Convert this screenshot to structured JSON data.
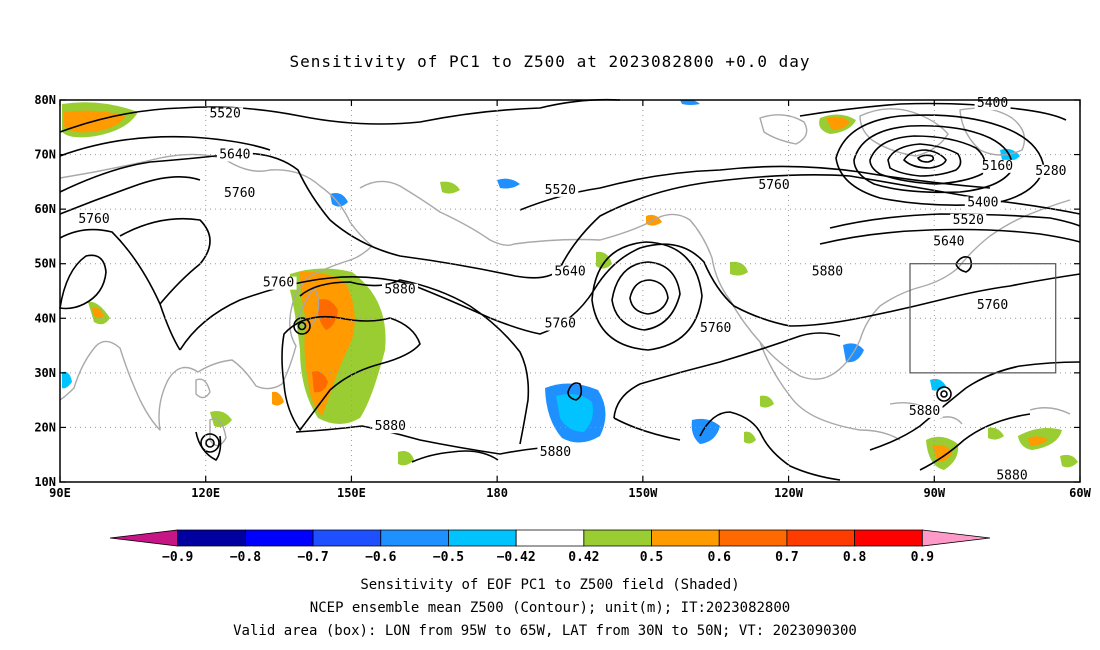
{
  "title": "Sensitivity of PC1 to Z500 at 2023082800 +0.0 day",
  "map": {
    "lon_range": [
      90,
      300
    ],
    "lat_range": [
      10,
      80
    ],
    "lon_ticks": [
      {
        "lon": 90,
        "label": "90E"
      },
      {
        "lon": 120,
        "label": "120E"
      },
      {
        "lon": 150,
        "label": "150E"
      },
      {
        "lon": 180,
        "label": "180"
      },
      {
        "lon": 210,
        "label": "150W"
      },
      {
        "lon": 240,
        "label": "120W"
      },
      {
        "lon": 270,
        "label": "90W"
      },
      {
        "lon": 300,
        "label": "60W"
      }
    ],
    "lat_ticks": [
      {
        "lat": 10,
        "label": "10N"
      },
      {
        "lat": 20,
        "label": "20N"
      },
      {
        "lat": 30,
        "label": "30N"
      },
      {
        "lat": 40,
        "label": "40N"
      },
      {
        "lat": 50,
        "label": "50N"
      },
      {
        "lat": 60,
        "label": "60N"
      },
      {
        "lat": 70,
        "label": "70N"
      },
      {
        "lat": 80,
        "label": "80N"
      }
    ],
    "grid": true,
    "valid_box": {
      "lon_min": 265,
      "lon_max": 295,
      "lat_min": 30,
      "lat_max": 50
    },
    "contour_labels": [
      {
        "text": "5520",
        "lon": 124,
        "lat": 76.8
      },
      {
        "text": "5640",
        "lon": 126,
        "lat": 69.3
      },
      {
        "text": "5760",
        "lon": 127,
        "lat": 62.2
      },
      {
        "text": "5760",
        "lon": 97,
        "lat": 57.5
      },
      {
        "text": "5760",
        "lon": 135,
        "lat": 45.8
      },
      {
        "text": "5880",
        "lon": 160,
        "lat": 44.5
      },
      {
        "text": "5880",
        "lon": 158,
        "lat": 19.5
      },
      {
        "text": "5880",
        "lon": 192,
        "lat": 14.8
      },
      {
        "text": "5520",
        "lon": 193,
        "lat": 62.8
      },
      {
        "text": "5640",
        "lon": 195,
        "lat": 47.8
      },
      {
        "text": "5760",
        "lon": 193,
        "lat": 38.3
      },
      {
        "text": "5760",
        "lon": 225,
        "lat": 37.5
      },
      {
        "text": "5760",
        "lon": 237,
        "lat": 63.7
      },
      {
        "text": "5880",
        "lon": 248,
        "lat": 47.8
      },
      {
        "text": "5880",
        "lon": 268,
        "lat": 22.3
      },
      {
        "text": "5400",
        "lon": 282,
        "lat": 78.7
      },
      {
        "text": "5160",
        "lon": 283,
        "lat": 67.2
      },
      {
        "text": "5280",
        "lon": 294,
        "lat": 66.3
      },
      {
        "text": "5400",
        "lon": 280,
        "lat": 60.5
      },
      {
        "text": "5520",
        "lon": 277,
        "lat": 57.3
      },
      {
        "text": "5640",
        "lon": 273,
        "lat": 53.3
      },
      {
        "text": "5760",
        "lon": 282,
        "lat": 41.7
      },
      {
        "text": "5880",
        "lon": 286,
        "lat": 10.5
      }
    ]
  },
  "colorbar": {
    "levels": [
      "-0.9",
      "-0.8",
      "-0.7",
      "-0.6",
      "-0.5",
      "-0.42",
      "0.42",
      "0.5",
      "0.6",
      "0.7",
      "0.8",
      "0.9"
    ],
    "colors": [
      "#c71585",
      "#0000a0",
      "#0000ff",
      "#1e50ff",
      "#1e90ff",
      "#00c3ff",
      "#ffffff",
      "#9acd32",
      "#ff9a00",
      "#ff6a00",
      "#ff3c00",
      "#ff0000",
      "#ff9ac8"
    ]
  },
  "captions": [
    "Sensitivity of EOF PC1 to Z500 field (Shaded)",
    "NCEP ensemble mean Z500 (Contour); unit(m); IT:2023082800",
    "Valid area (box): LON from 95W to 65W, LAT from 30N to 50N; VT: 2023090300"
  ]
}
